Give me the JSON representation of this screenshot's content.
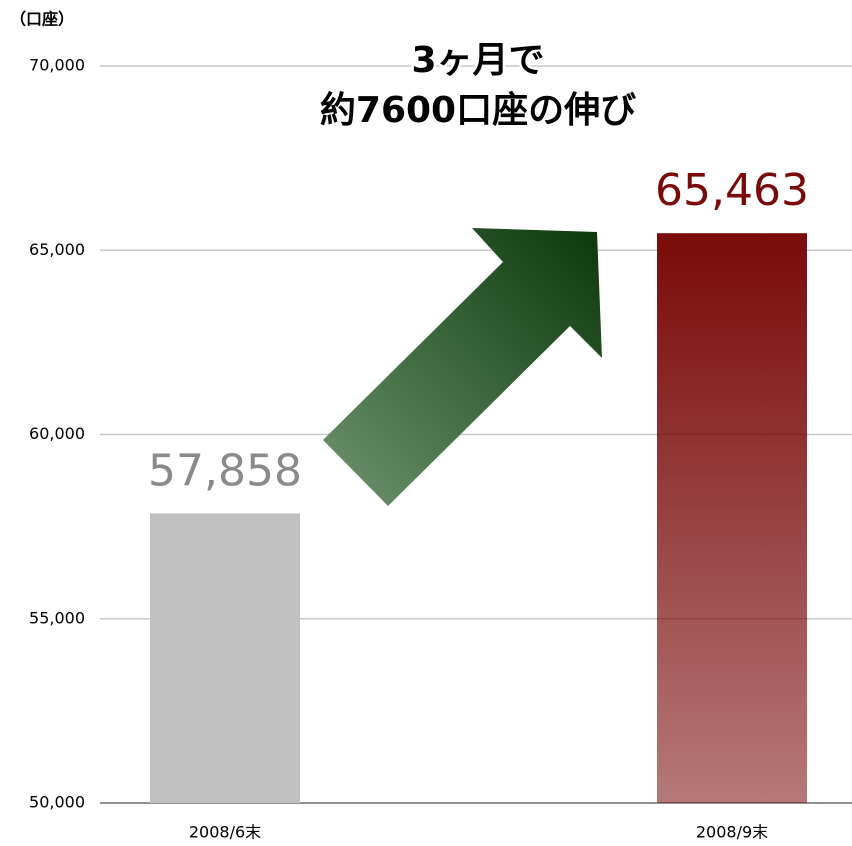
{
  "chart_data": {
    "type": "bar",
    "unit_label": "（口座）",
    "annotation": [
      "3ヶ月で",
      "約7600口座の伸び"
    ],
    "categories": [
      "2008/6末",
      "2008/9末"
    ],
    "values": [
      57858,
      65463
    ],
    "value_labels": [
      "57,858",
      "65,463"
    ],
    "colors": [
      "#c0c0c0",
      "#7a0a0a"
    ],
    "value_label_colors": [
      "#8a8a8a",
      "#7a0a0a"
    ],
    "ylim": [
      50000,
      70000
    ],
    "yticks": [
      {
        "value": 50000,
        "label": "50,000"
      },
      {
        "value": 55000,
        "label": "55,000"
      },
      {
        "value": 60000,
        "label": "60,000"
      },
      {
        "value": 65000,
        "label": "65,000"
      },
      {
        "value": 70000,
        "label": "70,000"
      }
    ],
    "grid": true
  }
}
